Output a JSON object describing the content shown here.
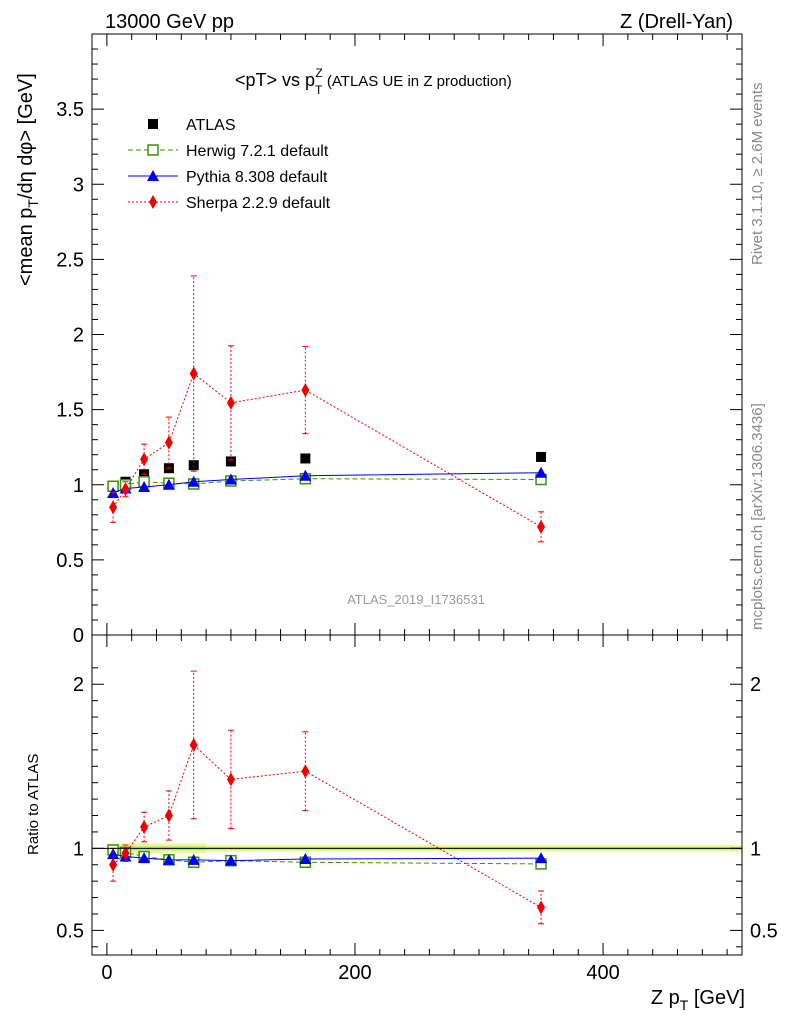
{
  "header": {
    "left": "13000 GeV pp",
    "right": "Z (Drell-Yan)"
  },
  "side_labels": {
    "rivet": "Rivet 3.1.10, ≥ 2.6M events",
    "mcplots": "mcplots.cern.ch [arXiv:1306.3436]"
  },
  "chart_data": {
    "type": "scatter",
    "title": "<pT> vs p_T^Z (ATLAS UE in Z production)",
    "title_parts": {
      "main": "<pT> vs p",
      "sub": "T",
      "sup": "Z",
      "tail": " (ATLAS UE in Z production)"
    },
    "analysis_id": "ATLAS_2019_I1736531",
    "xlabel": "Z p_T [GeV]",
    "xlabel_parts": {
      "main": "Z p",
      "sub": "T",
      "tail": " [GeV]"
    },
    "ylabel": "<mean p_T/dη dφ> [GeV]",
    "ylabel_parts": {
      "main": "<mean p",
      "sub": "T",
      "tail": "/dη dφ> [GeV]"
    },
    "ratio_ylabel": "Ratio to ATLAS",
    "xlim": [
      -12,
      512
    ],
    "ylim": [
      0,
      4.0
    ],
    "ratio_ylim": [
      0.35,
      2.3
    ],
    "x_ticks": [
      0,
      200,
      400
    ],
    "x_tick_labels": [
      "0",
      "200",
      "400"
    ],
    "y_ticks": [
      0,
      0.5,
      1,
      1.5,
      2,
      2.5,
      3,
      3.5
    ],
    "y_tick_labels": [
      "0",
      "0.5",
      "1",
      "1.5",
      "2",
      "2.5",
      "3",
      "3.5"
    ],
    "ratio_ticks": [
      0.5,
      1,
      2
    ],
    "ratio_tick_labels": [
      "0.5",
      "1",
      "2"
    ],
    "legend_position": "top-left",
    "grid": false,
    "data": {
      "name": "ATLAS",
      "color": "#000000",
      "x": [
        5,
        15,
        30,
        50,
        70,
        100,
        160,
        350
      ],
      "y": [
        0.99,
        1.02,
        1.07,
        1.11,
        1.13,
        1.155,
        1.175,
        1.185
      ],
      "xerr": [
        5,
        5,
        10,
        10,
        10,
        20,
        40,
        150
      ]
    },
    "series": [
      {
        "name": "Herwig 7.2.1 default",
        "color": "#3d8f0f",
        "marker": "open-square",
        "line": "dashed",
        "x": [
          5,
          15,
          30,
          50,
          70,
          100,
          160,
          350
        ],
        "y": [
          0.99,
          1.0,
          1.02,
          1.01,
          1.005,
          1.025,
          1.04,
          1.035
        ],
        "yerr": [
          0.01,
          0.01,
          0.01,
          0.01,
          0.01,
          0.01,
          0.01,
          0.01
        ],
        "ratio": [
          0.99,
          0.975,
          0.95,
          0.93,
          0.915,
          0.925,
          0.915,
          0.905
        ],
        "ratio_err": [
          0.01,
          0.01,
          0.01,
          0.01,
          0.01,
          0.01,
          0.01,
          0.01
        ]
      },
      {
        "name": "Pythia 8.308 default",
        "color": "#0000ee",
        "marker": "triangle",
        "line": "solid",
        "x": [
          5,
          15,
          30,
          50,
          70,
          100,
          160,
          350
        ],
        "y": [
          0.945,
          0.975,
          0.985,
          1.0,
          1.02,
          1.035,
          1.06,
          1.08
        ],
        "yerr": [
          0.015,
          0.01,
          0.01,
          0.01,
          0.01,
          0.01,
          0.01,
          0.02
        ],
        "ratio": [
          0.965,
          0.95,
          0.94,
          0.93,
          0.93,
          0.925,
          0.935,
          0.94
        ],
        "ratio_err": [
          0.015,
          0.01,
          0.01,
          0.01,
          0.01,
          0.01,
          0.01,
          0.02
        ]
      },
      {
        "name": "Sherpa 2.2.9 default",
        "color": "#ee0000",
        "marker": "diamond",
        "line": "dotted",
        "x": [
          5,
          15,
          30,
          50,
          70,
          100,
          160,
          350
        ],
        "y": [
          0.85,
          0.97,
          1.17,
          1.28,
          1.74,
          1.545,
          1.63,
          0.72
        ],
        "yerr": [
          0.1,
          0.05,
          0.1,
          0.17,
          0.65,
          0.38,
          0.29,
          0.1
        ],
        "ratio": [
          0.9,
          0.97,
          1.13,
          1.2,
          1.63,
          1.42,
          1.47,
          0.64
        ],
        "ratio_err": [
          0.1,
          0.05,
          0.09,
          0.15,
          0.45,
          0.3,
          0.24,
          0.1
        ]
      }
    ]
  }
}
